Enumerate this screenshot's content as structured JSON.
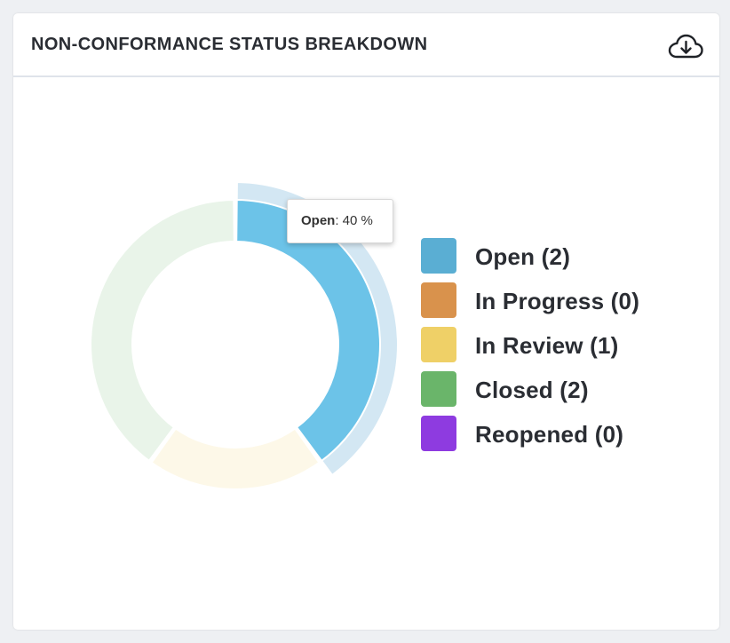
{
  "card": {
    "title": "NON-CONFORMANCE STATUS BREAKDOWN",
    "download_icon": "cloud-download-icon"
  },
  "tooltip": {
    "label": "Open",
    "value": ": 40 %"
  },
  "legend": [
    {
      "label": "Open (2)",
      "color": "#5aaed3"
    },
    {
      "label": "In Progress (0)",
      "color": "#d9924c"
    },
    {
      "label": "In Review (1)",
      "color": "#efd067"
    },
    {
      "label": "Closed (2)",
      "color": "#6ab56a"
    },
    {
      "label": "Reopened (0)",
      "color": "#8e3be0"
    }
  ],
  "chart_data": {
    "type": "pie",
    "style": "donut",
    "title": "NON-CONFORMANCE STATUS BREAKDOWN",
    "categories": [
      "Open",
      "In Progress",
      "In Review",
      "Closed",
      "Reopened"
    ],
    "values": [
      2,
      0,
      1,
      2,
      0
    ],
    "percentages": [
      40,
      0,
      20,
      40,
      0
    ],
    "colors": [
      "#5aaed3",
      "#d9924c",
      "#efd067",
      "#6ab56a",
      "#8e3be0"
    ],
    "highlighted": "Open",
    "legend_position": "right"
  }
}
